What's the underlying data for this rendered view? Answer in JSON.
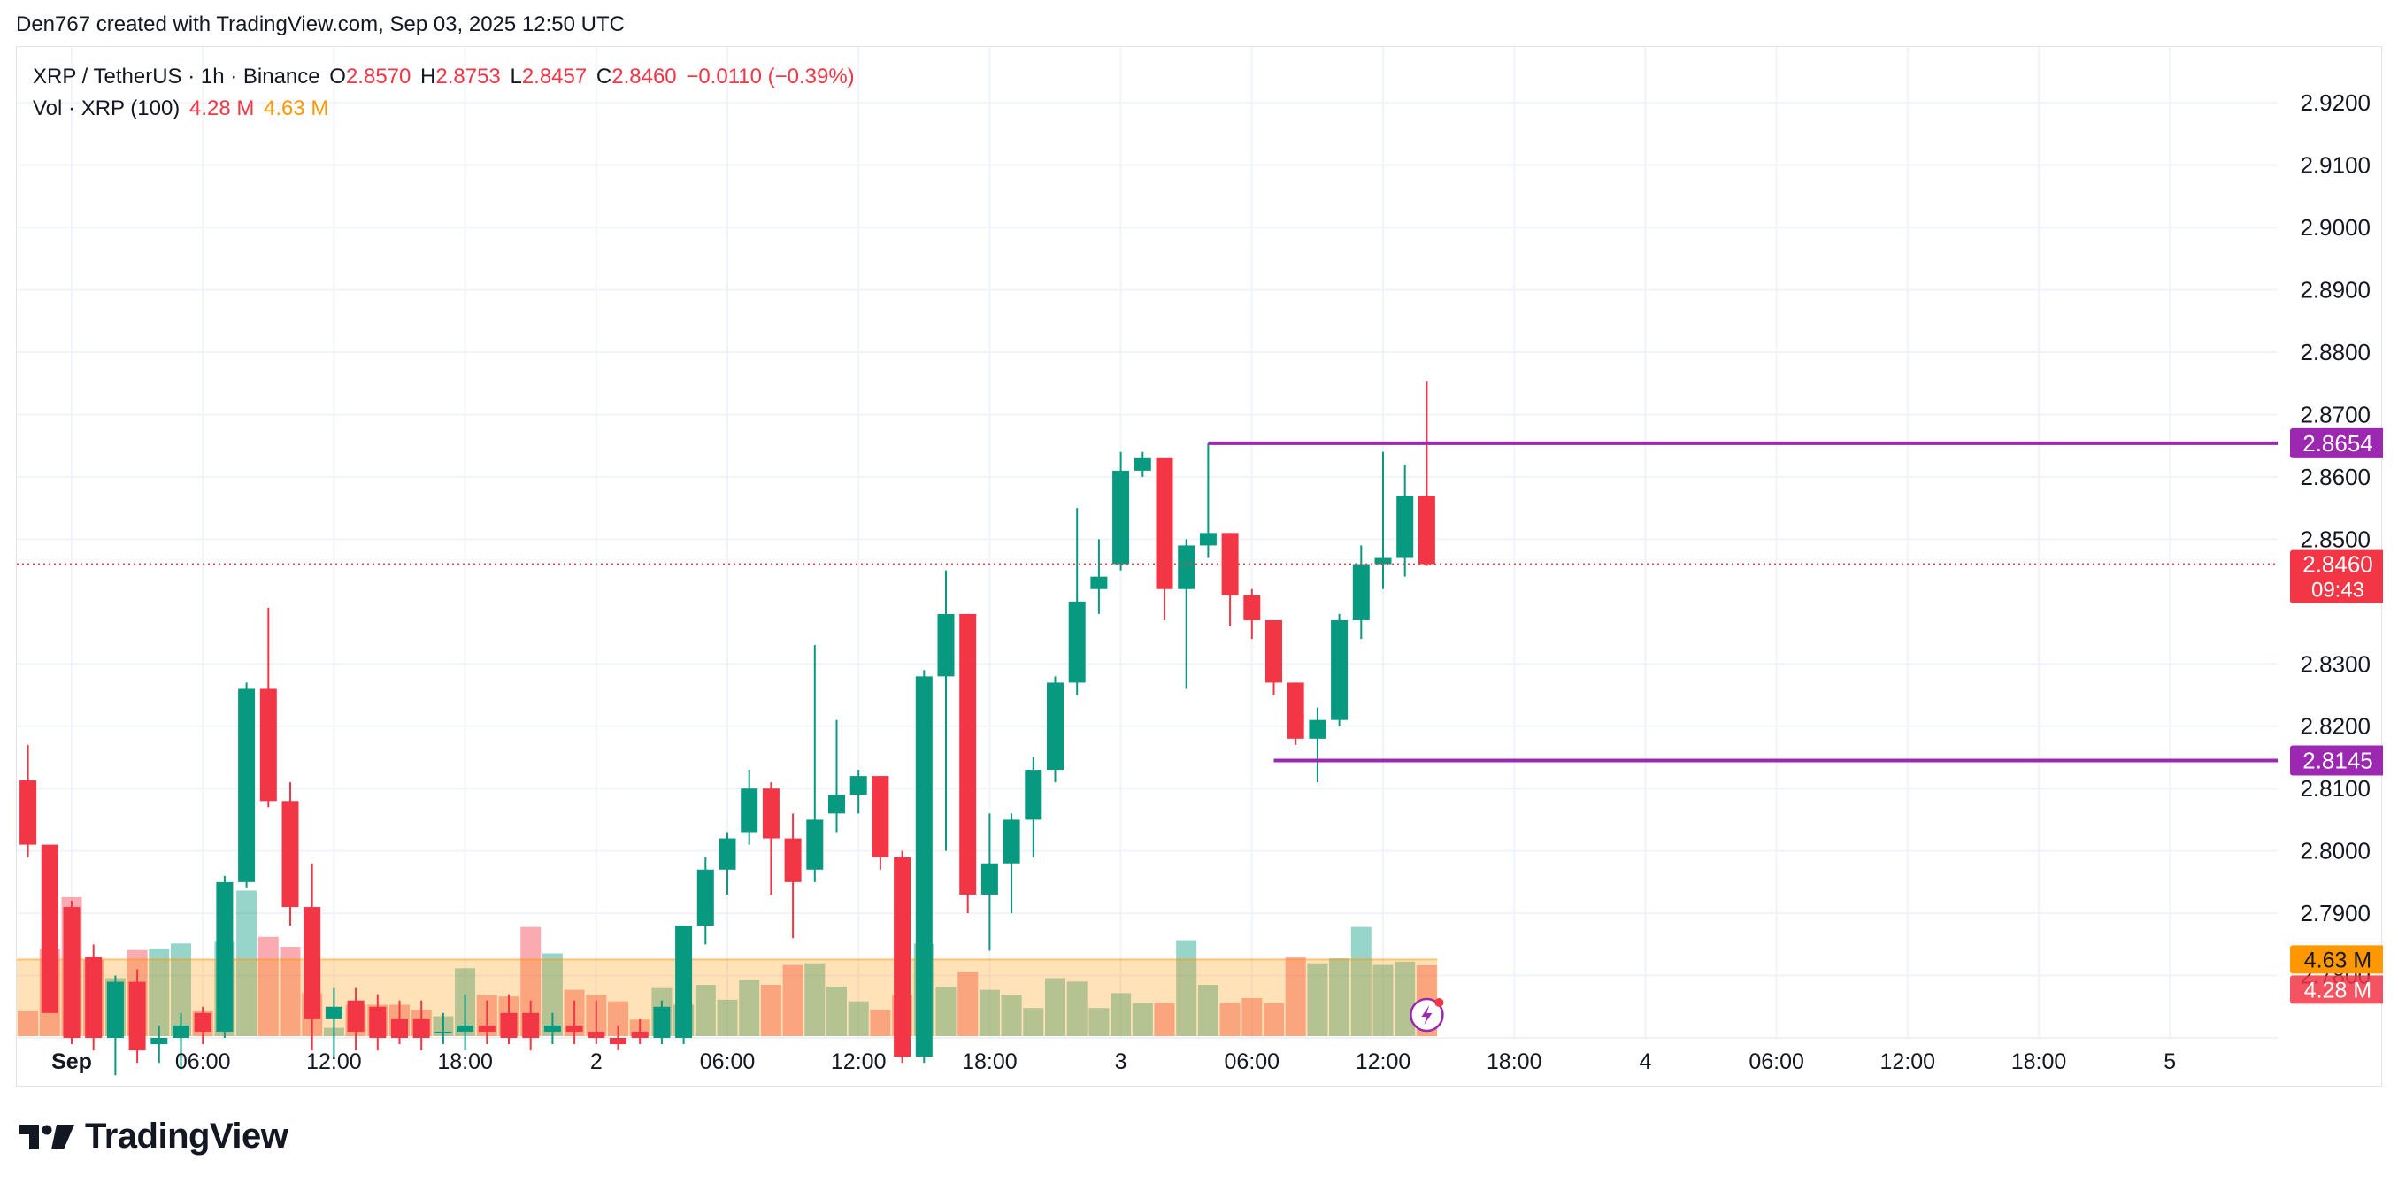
{
  "header": {
    "credit": "Den767 created with TradingView.com, Sep 03, 2025 12:50 UTC"
  },
  "legend": {
    "symbol": "XRP / TetherUS · 1h · Binance",
    "o_label": "O",
    "o": "2.8570",
    "h_label": "H",
    "h": "2.8753",
    "l_label": "L",
    "l": "2.8457",
    "c_label": "C",
    "c": "2.8460",
    "change": "−0.0110 (−0.39%)",
    "vol_label": "Vol · XRP (100)",
    "vol_value": "4.28 M",
    "vol_ma": "4.63 M"
  },
  "footer": {
    "logo_text": "TradingView",
    "logo_icon": "tradingview-logo-icon"
  },
  "colors": {
    "up": "#089981",
    "down": "#f23645",
    "level": "#9c27b0",
    "vol_ma": "#ff9800",
    "grid": "#f0f3fa"
  },
  "chart_data": {
    "type": "candlestick",
    "ylim": [
      2.77,
      2.925
    ],
    "y_ticks": [
      "2.9200",
      "2.9100",
      "2.9000",
      "2.8900",
      "2.8800",
      "2.8700",
      "2.8600",
      "2.8500",
      "2.8300",
      "2.8200",
      "2.8100",
      "2.8000",
      "2.7900",
      "2.7800"
    ],
    "x_ticks": [
      "Sep",
      "06:00",
      "12:00",
      "18:00",
      "2",
      "06:00",
      "12:00",
      "18:00",
      "3",
      "06:00",
      "12:00",
      "18:00",
      "4",
      "06:00",
      "12:00",
      "18:00",
      "5"
    ],
    "x_tick_hours": [
      0,
      6,
      12,
      18,
      24,
      30,
      36,
      42,
      48,
      54,
      60,
      66,
      72,
      78,
      84,
      90,
      96
    ],
    "horizontal_levels": [
      {
        "value": 2.8654,
        "label": "2.8654",
        "start_hour": 52
      },
      {
        "value": 2.8145,
        "label": "2.8145",
        "start_hour": 55
      }
    ],
    "last_price": {
      "value": 2.846,
      "label": "2.8460",
      "countdown": "09:43"
    },
    "volume_axis_labels": {
      "ma": "4.63 M",
      "volume": "4.28 M"
    },
    "volume_ma": 4.63,
    "candles": [
      {
        "t": -2,
        "o": 2.8113,
        "h": 2.817,
        "l": 2.799,
        "c": 2.801,
        "v": 1.5
      },
      {
        "t": -1,
        "o": 2.801,
        "h": 2.801,
        "l": 2.774,
        "c": 2.774,
        "v": 5.3
      },
      {
        "t": 0,
        "o": 2.791,
        "h": 2.792,
        "l": 2.769,
        "c": 2.77,
        "v": 8.4
      },
      {
        "t": 1,
        "o": 2.783,
        "h": 2.785,
        "l": 2.768,
        "c": 2.77,
        "v": 4.6
      },
      {
        "t": 2,
        "o": 2.77,
        "h": 2.78,
        "l": 2.764,
        "c": 2.779,
        "v": 3.5
      },
      {
        "t": 3,
        "o": 2.779,
        "h": 2.781,
        "l": 2.766,
        "c": 2.768,
        "v": 5.2
      },
      {
        "t": 4,
        "o": 2.769,
        "h": 2.772,
        "l": 2.766,
        "c": 2.77,
        "v": 5.3
      },
      {
        "t": 5,
        "o": 2.77,
        "h": 2.774,
        "l": 2.765,
        "c": 2.772,
        "v": 5.6
      },
      {
        "t": 6,
        "o": 2.774,
        "h": 2.775,
        "l": 2.769,
        "c": 2.771,
        "v": 1.5
      },
      {
        "t": 7,
        "o": 2.771,
        "h": 2.796,
        "l": 2.77,
        "c": 2.795,
        "v": 5.7
      },
      {
        "t": 8,
        "o": 2.795,
        "h": 2.827,
        "l": 2.794,
        "c": 2.826,
        "v": 8.8
      },
      {
        "t": 9,
        "o": 2.826,
        "h": 2.839,
        "l": 2.807,
        "c": 2.808,
        "v": 6.0
      },
      {
        "t": 10,
        "o": 2.808,
        "h": 2.811,
        "l": 2.788,
        "c": 2.791,
        "v": 5.4
      },
      {
        "t": 11,
        "o": 2.791,
        "h": 2.798,
        "l": 2.768,
        "c": 2.773,
        "v": 2.6
      },
      {
        "t": 12,
        "o": 2.773,
        "h": 2.778,
        "l": 2.767,
        "c": 2.775,
        "v": 0.5
      },
      {
        "t": 13,
        "o": 2.776,
        "h": 2.778,
        "l": 2.768,
        "c": 2.771,
        "v": 1.9
      },
      {
        "t": 14,
        "o": 2.775,
        "h": 2.777,
        "l": 2.768,
        "c": 2.77,
        "v": 1.9
      },
      {
        "t": 15,
        "o": 2.773,
        "h": 2.776,
        "l": 2.769,
        "c": 2.77,
        "v": 1.9
      },
      {
        "t": 16,
        "o": 2.773,
        "h": 2.776,
        "l": 2.768,
        "c": 2.77,
        "v": 1.6
      },
      {
        "t": 17,
        "o": 2.771,
        "h": 2.774,
        "l": 2.769,
        "c": 2.771,
        "v": 1.2
      },
      {
        "t": 18,
        "o": 2.771,
        "h": 2.777,
        "l": 2.768,
        "c": 2.772,
        "v": 4.1
      },
      {
        "t": 19,
        "o": 2.772,
        "h": 2.776,
        "l": 2.769,
        "c": 2.771,
        "v": 2.5
      },
      {
        "t": 20,
        "o": 2.774,
        "h": 2.777,
        "l": 2.769,
        "c": 2.77,
        "v": 2.4
      },
      {
        "t": 21,
        "o": 2.774,
        "h": 2.776,
        "l": 2.768,
        "c": 2.77,
        "v": 6.6
      },
      {
        "t": 22,
        "o": 2.771,
        "h": 2.774,
        "l": 2.769,
        "c": 2.772,
        "v": 5.0
      },
      {
        "t": 23,
        "o": 2.772,
        "h": 2.776,
        "l": 2.769,
        "c": 2.771,
        "v": 2.8
      },
      {
        "t": 24,
        "o": 2.771,
        "h": 2.776,
        "l": 2.769,
        "c": 2.77,
        "v": 2.5
      },
      {
        "t": 25,
        "o": 2.77,
        "h": 2.772,
        "l": 2.768,
        "c": 2.769,
        "v": 2.1
      },
      {
        "t": 26,
        "o": 2.771,
        "h": 2.773,
        "l": 2.769,
        "c": 2.77,
        "v": 1.0
      },
      {
        "t": 27,
        "o": 2.77,
        "h": 2.776,
        "l": 2.769,
        "c": 2.775,
        "v": 2.9
      },
      {
        "t": 28,
        "o": 2.77,
        "h": 2.788,
        "l": 2.769,
        "c": 2.788,
        "v": 1.9
      },
      {
        "t": 29,
        "o": 2.788,
        "h": 2.799,
        "l": 2.785,
        "c": 2.797,
        "v": 3.1
      },
      {
        "t": 30,
        "o": 2.797,
        "h": 2.803,
        "l": 2.793,
        "c": 2.802,
        "v": 2.2
      },
      {
        "t": 31,
        "o": 2.803,
        "h": 2.813,
        "l": 2.801,
        "c": 2.81,
        "v": 3.4
      },
      {
        "t": 32,
        "o": 2.81,
        "h": 2.811,
        "l": 2.793,
        "c": 2.802,
        "v": 3.1
      },
      {
        "t": 33,
        "o": 2.802,
        "h": 2.806,
        "l": 2.786,
        "c": 2.795,
        "v": 4.3
      },
      {
        "t": 34,
        "o": 2.797,
        "h": 2.833,
        "l": 2.795,
        "c": 2.805,
        "v": 4.4
      },
      {
        "t": 35,
        "o": 2.806,
        "h": 2.821,
        "l": 2.803,
        "c": 2.809,
        "v": 3.0
      },
      {
        "t": 36,
        "o": 2.809,
        "h": 2.813,
        "l": 2.806,
        "c": 2.812,
        "v": 2.1
      },
      {
        "t": 37,
        "o": 2.812,
        "h": 2.812,
        "l": 2.797,
        "c": 2.799,
        "v": 1.6
      },
      {
        "t": 38,
        "o": 2.799,
        "h": 2.8,
        "l": 2.766,
        "c": 2.767,
        "v": 2.5
      },
      {
        "t": 39,
        "o": 2.767,
        "h": 2.829,
        "l": 2.766,
        "c": 2.828,
        "v": 5.6
      },
      {
        "t": 40,
        "o": 2.828,
        "h": 2.845,
        "l": 2.8,
        "c": 2.838,
        "v": 3.0
      },
      {
        "t": 41,
        "o": 2.838,
        "h": 2.838,
        "l": 2.79,
        "c": 2.793,
        "v": 3.9
      },
      {
        "t": 42,
        "o": 2.793,
        "h": 2.806,
        "l": 2.784,
        "c": 2.798,
        "v": 2.8
      },
      {
        "t": 43,
        "o": 2.798,
        "h": 2.806,
        "l": 2.79,
        "c": 2.805,
        "v": 2.5
      },
      {
        "t": 44,
        "o": 2.805,
        "h": 2.815,
        "l": 2.799,
        "c": 2.813,
        "v": 1.7
      },
      {
        "t": 45,
        "o": 2.813,
        "h": 2.828,
        "l": 2.811,
        "c": 2.827,
        "v": 3.5
      },
      {
        "t": 46,
        "o": 2.827,
        "h": 2.855,
        "l": 2.825,
        "c": 2.84,
        "v": 3.3
      },
      {
        "t": 47,
        "o": 2.842,
        "h": 2.85,
        "l": 2.838,
        "c": 2.844,
        "v": 1.7
      },
      {
        "t": 48,
        "o": 2.846,
        "h": 2.864,
        "l": 2.845,
        "c": 2.861,
        "v": 2.6
      },
      {
        "t": 49,
        "o": 2.861,
        "h": 2.864,
        "l": 2.86,
        "c": 2.863,
        "v": 2.0
      },
      {
        "t": 50,
        "o": 2.863,
        "h": 2.862,
        "l": 2.837,
        "c": 2.842,
        "v": 2.0
      },
      {
        "t": 51,
        "o": 2.842,
        "h": 2.85,
        "l": 2.826,
        "c": 2.849,
        "v": 5.8
      },
      {
        "t": 52,
        "o": 2.849,
        "h": 2.8654,
        "l": 2.847,
        "c": 2.851,
        "v": 3.1
      },
      {
        "t": 53,
        "o": 2.851,
        "h": 2.851,
        "l": 2.836,
        "c": 2.841,
        "v": 2.0
      },
      {
        "t": 54,
        "o": 2.841,
        "h": 2.842,
        "l": 2.834,
        "c": 2.837,
        "v": 2.3
      },
      {
        "t": 55,
        "o": 2.837,
        "h": 2.837,
        "l": 2.825,
        "c": 2.827,
        "v": 2.0
      },
      {
        "t": 56,
        "o": 2.827,
        "h": 2.827,
        "l": 2.817,
        "c": 2.818,
        "v": 4.8
      },
      {
        "t": 57,
        "o": 2.818,
        "h": 2.823,
        "l": 2.811,
        "c": 2.821,
        "v": 4.4
      },
      {
        "t": 58,
        "o": 2.821,
        "h": 2.838,
        "l": 2.82,
        "c": 2.837,
        "v": 4.7
      },
      {
        "t": 59,
        "o": 2.837,
        "h": 2.849,
        "l": 2.834,
        "c": 2.846,
        "v": 6.6
      },
      {
        "t": 60,
        "o": 2.846,
        "h": 2.864,
        "l": 2.842,
        "c": 2.847,
        "v": 4.3
      },
      {
        "t": 61,
        "o": 2.847,
        "h": 2.862,
        "l": 2.844,
        "c": 2.857,
        "v": 4.5
      },
      {
        "t": 62,
        "o": 2.857,
        "h": 2.8753,
        "l": 2.8457,
        "c": 2.846,
        "v": 4.28
      }
    ]
  }
}
